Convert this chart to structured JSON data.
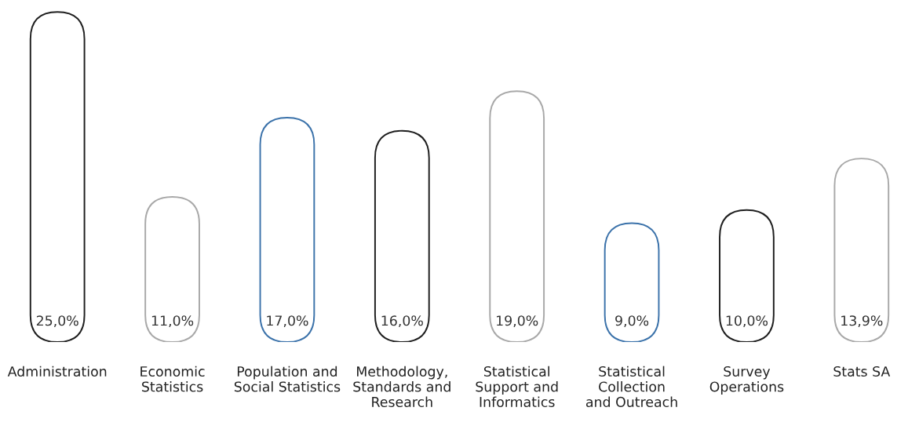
{
  "chart_data": {
    "type": "bar",
    "categories": [
      "Administration",
      "Economic\nStatistics",
      "Population and\nSocial Statistics",
      "Methodology,\nStandards and\nResearch",
      "Statistical\nSupport and\nInformatics",
      "Statistical\nCollection\nand Outreach",
      "Survey\nOperations",
      "Stats SA"
    ],
    "values": [
      25.0,
      11.0,
      17.0,
      16.0,
      19.0,
      9.0,
      10.0,
      13.9
    ],
    "colors": [
      "#1e1e1e",
      "#a8a8a8",
      "#3b72aa",
      "#1e1e1e",
      "#a8a8a8",
      "#3b72aa",
      "#1e1e1e",
      "#a8a8a8"
    ],
    "value_labels": [
      "25,0%",
      "11,0%",
      "17,0%",
      "16,0%",
      "19,0%",
      "9,0%",
      "10,0%",
      "13,9%"
    ],
    "grid": false,
    "legend": false
  }
}
